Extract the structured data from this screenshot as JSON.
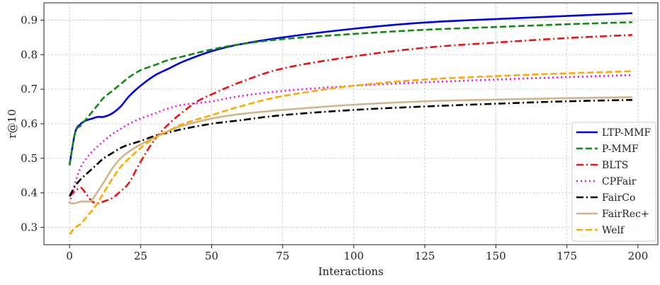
{
  "chart_data": {
    "type": "line",
    "title": "",
    "xlabel": "Interactions",
    "ylabel": "r@10",
    "xlim": [
      -9,
      207
    ],
    "ylim": [
      0.25,
      0.95
    ],
    "xticks": [
      0,
      25,
      50,
      75,
      100,
      125,
      150,
      175,
      200
    ],
    "yticks": [
      0.3,
      0.4,
      0.5,
      0.6,
      0.7,
      0.8,
      0.9
    ],
    "xtick_labels": [
      "0",
      "25",
      "50",
      "75",
      "100",
      "125",
      "150",
      "175",
      "200"
    ],
    "ytick_labels": [
      "0.3",
      "0.4",
      "0.5",
      "0.6",
      "0.7",
      "0.8",
      "0.9"
    ],
    "grid": true,
    "legend_position": "lower-right",
    "series": [
      {
        "name": "LTP-MMF",
        "color": "#0000ee",
        "dash": "solid",
        "x": [
          0,
          2,
          4,
          6,
          8,
          10,
          12,
          15,
          18,
          21,
          25,
          30,
          35,
          40,
          50,
          60,
          75,
          100,
          125,
          150,
          175,
          198
        ],
        "y": [
          0.48,
          0.575,
          0.6,
          0.61,
          0.615,
          0.62,
          0.62,
          0.63,
          0.65,
          0.68,
          0.71,
          0.74,
          0.76,
          0.78,
          0.81,
          0.83,
          0.85,
          0.875,
          0.893,
          0.903,
          0.912,
          0.92
        ]
      },
      {
        "name": "P-MMF",
        "color": "#138a13",
        "dash": "dashed",
        "x": [
          0,
          2,
          4,
          6,
          8,
          10,
          12,
          15,
          18,
          21,
          25,
          30,
          35,
          40,
          50,
          60,
          75,
          100,
          125,
          150,
          175,
          198
        ],
        "y": [
          0.48,
          0.575,
          0.595,
          0.615,
          0.635,
          0.655,
          0.675,
          0.695,
          0.715,
          0.735,
          0.755,
          0.77,
          0.785,
          0.795,
          0.815,
          0.83,
          0.845,
          0.86,
          0.872,
          0.88,
          0.888,
          0.894
        ]
      },
      {
        "name": "BLTS",
        "color": "#ee1111",
        "dash": "dashdot",
        "x": [
          0,
          2,
          4,
          6,
          8,
          10,
          12,
          15,
          18,
          21,
          25,
          30,
          35,
          40,
          45,
          50,
          60,
          75,
          100,
          125,
          150,
          175,
          198
        ],
        "y": [
          0.39,
          0.405,
          0.415,
          0.395,
          0.375,
          0.37,
          0.375,
          0.385,
          0.405,
          0.43,
          0.49,
          0.555,
          0.6,
          0.635,
          0.665,
          0.685,
          0.72,
          0.76,
          0.795,
          0.82,
          0.835,
          0.848,
          0.857
        ]
      },
      {
        "name": "CPFair",
        "color": "#ee11ee",
        "dash": "dotted",
        "x": [
          0,
          2,
          4,
          6,
          8,
          10,
          12,
          15,
          18,
          21,
          25,
          30,
          35,
          40,
          50,
          60,
          75,
          100,
          125,
          150,
          175,
          198
        ],
        "y": [
          0.37,
          0.43,
          0.475,
          0.5,
          0.52,
          0.535,
          0.55,
          0.57,
          0.585,
          0.6,
          0.615,
          0.63,
          0.645,
          0.655,
          0.665,
          0.68,
          0.695,
          0.71,
          0.72,
          0.728,
          0.735,
          0.741
        ]
      },
      {
        "name": "FairCo",
        "color": "#000000",
        "dash": "dashdot",
        "x": [
          0,
          2,
          4,
          6,
          8,
          10,
          12,
          15,
          18,
          21,
          25,
          30,
          35,
          40,
          50,
          60,
          75,
          100,
          125,
          150,
          175,
          198
        ],
        "y": [
          0.39,
          0.42,
          0.44,
          0.455,
          0.47,
          0.485,
          0.5,
          0.515,
          0.53,
          0.54,
          0.55,
          0.565,
          0.575,
          0.585,
          0.6,
          0.61,
          0.625,
          0.64,
          0.65,
          0.658,
          0.665,
          0.669
        ]
      },
      {
        "name": "FairRec+",
        "color": "#d2b48c",
        "dash": "solid",
        "x": [
          0,
          2,
          4,
          5,
          7,
          8,
          10,
          12,
          15,
          18,
          21,
          25,
          30,
          35,
          40,
          50,
          60,
          75,
          100,
          125,
          150,
          175,
          198
        ],
        "y": [
          0.37,
          0.37,
          0.375,
          0.375,
          0.375,
          0.38,
          0.405,
          0.43,
          0.47,
          0.5,
          0.52,
          0.54,
          0.56,
          0.58,
          0.595,
          0.615,
          0.628,
          0.64,
          0.655,
          0.665,
          0.67,
          0.674,
          0.677
        ]
      },
      {
        "name": "Welf",
        "color": "#ffaa00",
        "dash": "dashed",
        "x": [
          0,
          2,
          4,
          5,
          7,
          9,
          12,
          15,
          18,
          21,
          25,
          30,
          35,
          40,
          50,
          60,
          75,
          100,
          125,
          150,
          175,
          198
        ],
        "y": [
          0.28,
          0.3,
          0.31,
          0.32,
          0.34,
          0.36,
          0.4,
          0.44,
          0.475,
          0.5,
          0.53,
          0.56,
          0.58,
          0.6,
          0.625,
          0.65,
          0.68,
          0.71,
          0.728,
          0.738,
          0.746,
          0.752
        ]
      }
    ]
  }
}
